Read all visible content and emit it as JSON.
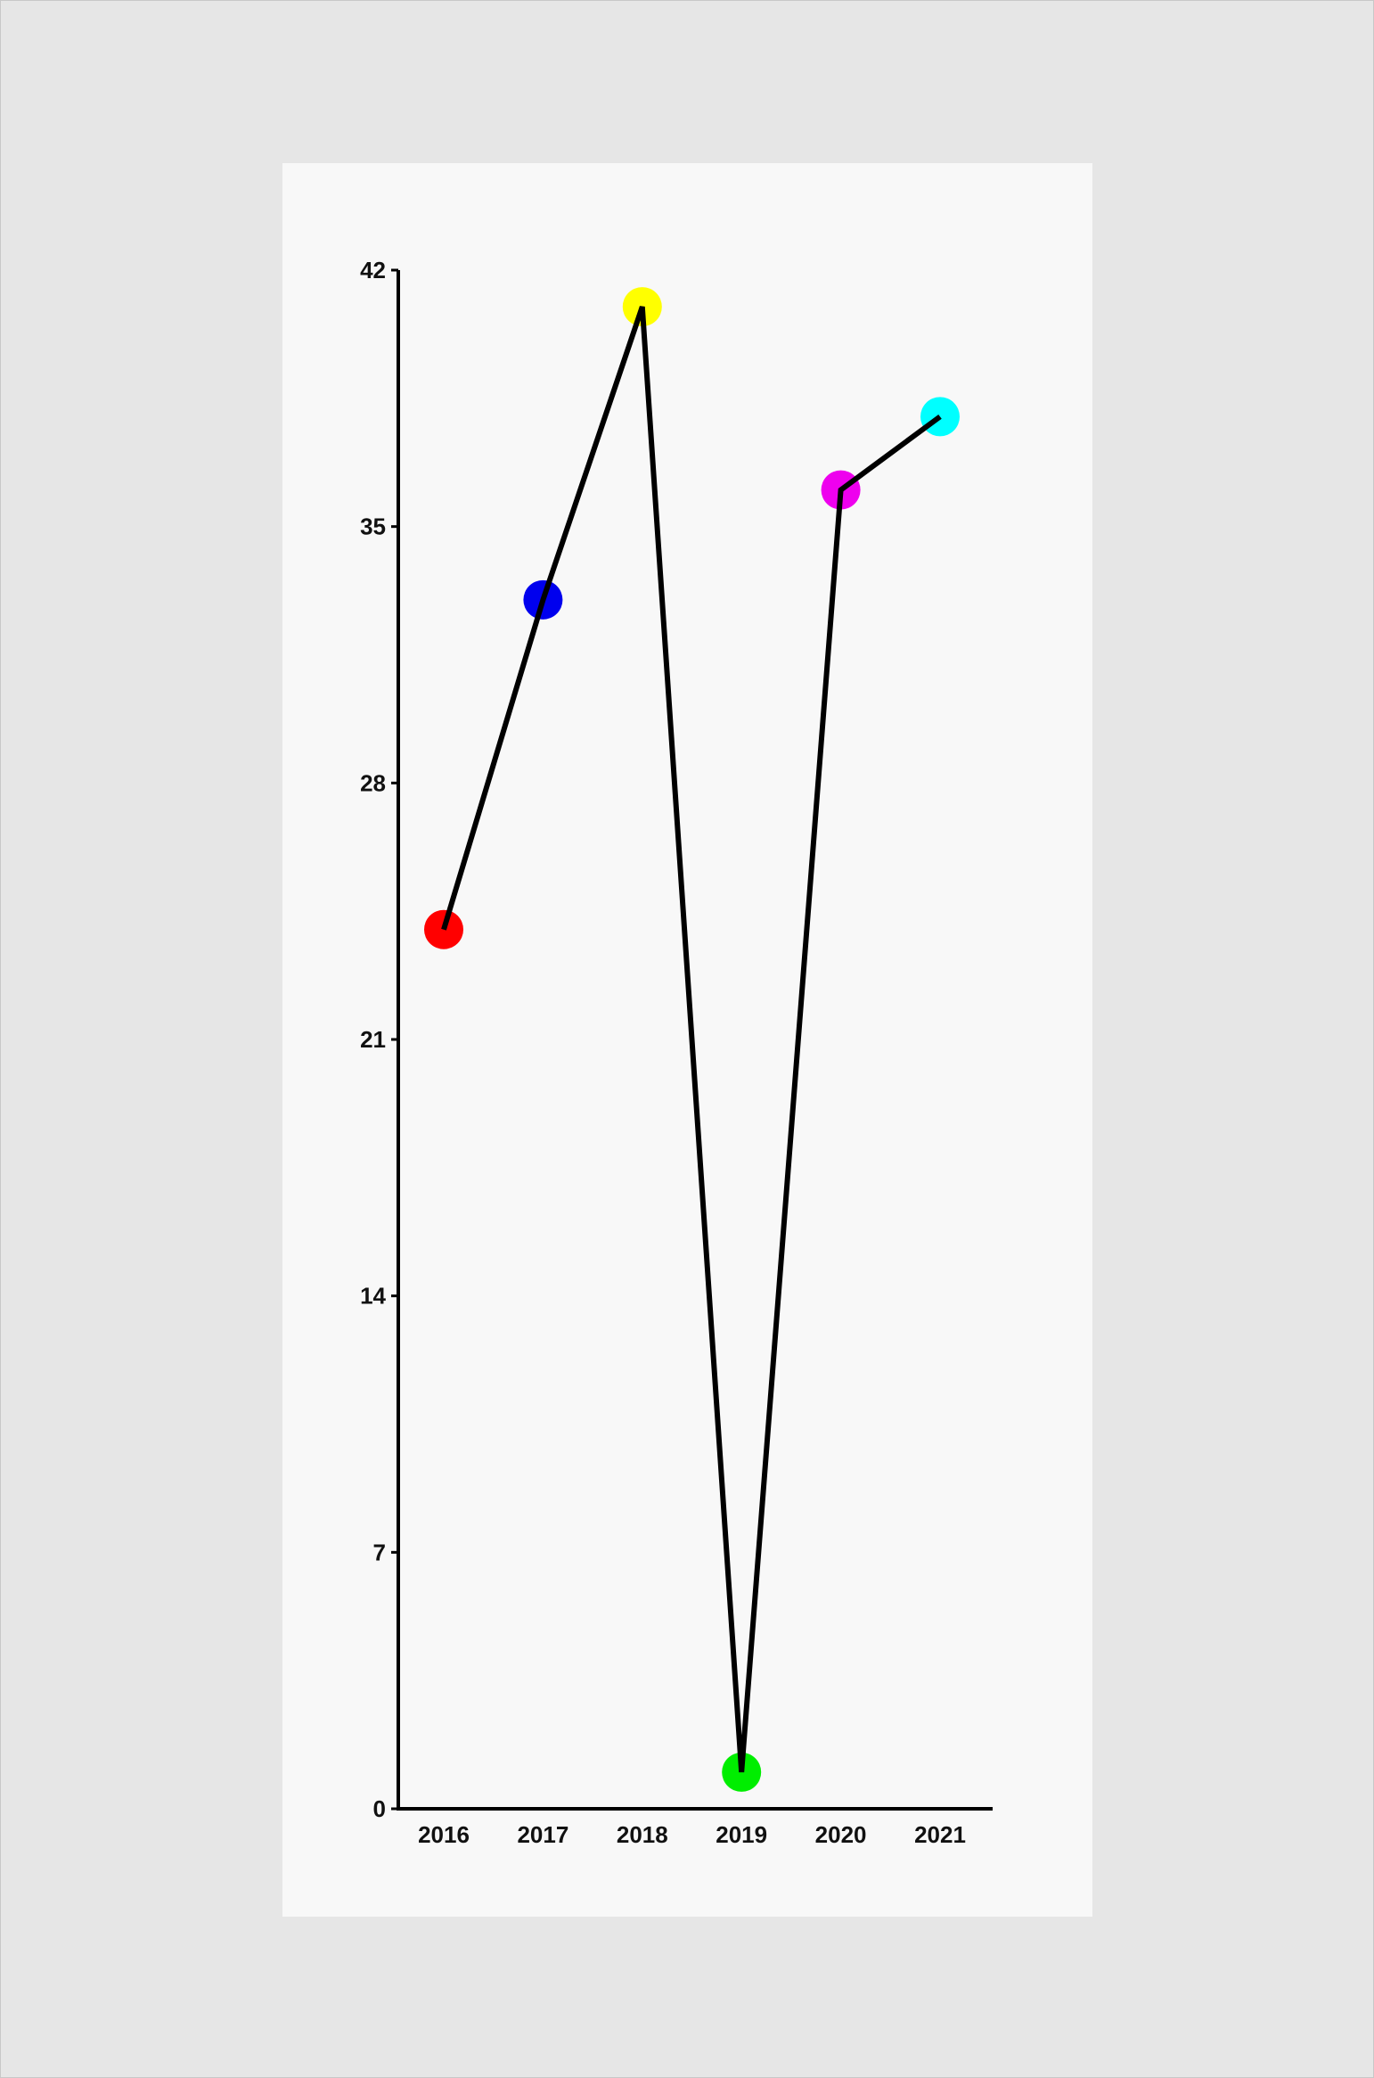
{
  "chart_data": {
    "type": "line",
    "title": "",
    "xlabel": "",
    "ylabel": "",
    "categories": [
      "2016",
      "2017",
      "2018",
      "2019",
      "2020",
      "2021"
    ],
    "values": [
      24,
      33,
      41,
      1,
      36,
      38
    ],
    "point_colors": [
      "#ff0000",
      "#0000ee",
      "#ffff00",
      "#00ee00",
      "#ee00ee",
      "#00ffff"
    ],
    "line_color": "#000000",
    "ylim": [
      0,
      42
    ],
    "yticks": [
      "0",
      "7",
      "14",
      "21",
      "28",
      "35",
      "42"
    ],
    "grid": false,
    "legend": "none"
  }
}
